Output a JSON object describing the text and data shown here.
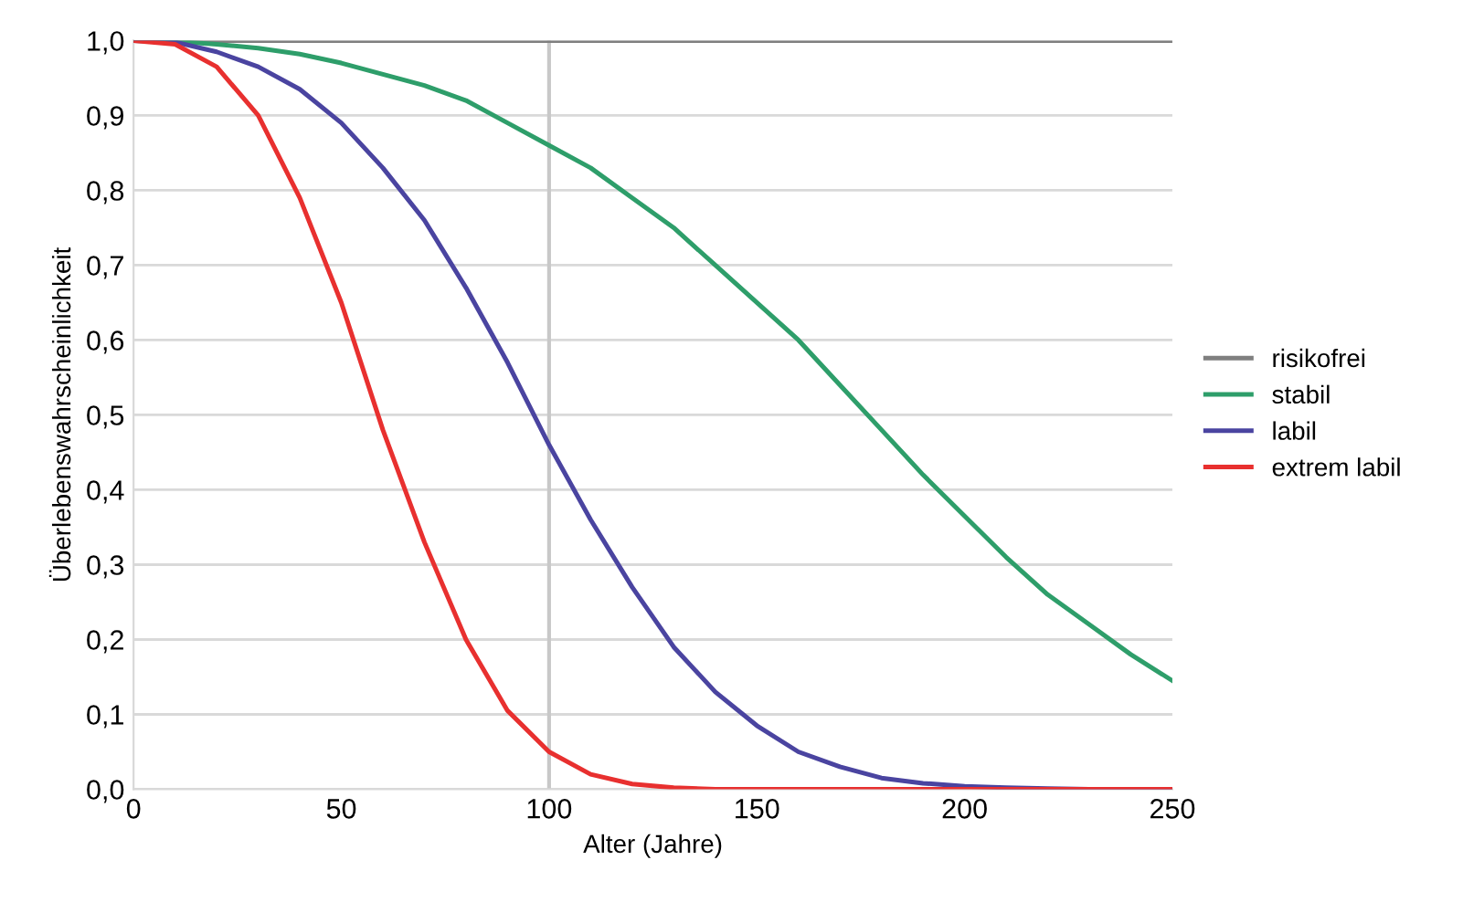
{
  "chart_data": {
    "type": "line",
    "xlabel": "Alter (Jahre)",
    "ylabel": "Überlebenswahrscheinlichkeit",
    "x": [
      0,
      10,
      20,
      30,
      40,
      50,
      60,
      70,
      80,
      90,
      100,
      110,
      120,
      130,
      140,
      150,
      160,
      170,
      180,
      190,
      200,
      210,
      220,
      230,
      240,
      250
    ],
    "series": [
      {
        "name": "risikofrei",
        "color": "#7f7f7f",
        "values": [
          1,
          1,
          1,
          1,
          1,
          1,
          1,
          1,
          1,
          1,
          1,
          1,
          1,
          1,
          1,
          1,
          1,
          1,
          1,
          1,
          1,
          1,
          1,
          1,
          1,
          1
        ]
      },
      {
        "name": "stabil",
        "color": "#2e9e6a",
        "values": [
          1,
          0.999,
          0.995,
          0.99,
          0.982,
          0.97,
          0.955,
          0.94,
          0.92,
          0.89,
          0.86,
          0.83,
          0.79,
          0.75,
          0.7,
          0.65,
          0.6,
          0.54,
          0.48,
          0.42,
          0.365,
          0.31,
          0.26,
          0.22,
          0.18,
          0.145
        ]
      },
      {
        "name": "labil",
        "color": "#4a44a0",
        "values": [
          1,
          0.998,
          0.985,
          0.965,
          0.935,
          0.89,
          0.83,
          0.76,
          0.67,
          0.57,
          0.46,
          0.36,
          0.27,
          0.19,
          0.13,
          0.085,
          0.05,
          0.03,
          0.015,
          0.008,
          0.004,
          0.002,
          0.001,
          0,
          0,
          0
        ]
      },
      {
        "name": "extrem labil",
        "color": "#e8302f",
        "values": [
          1,
          0.995,
          0.965,
          0.9,
          0.79,
          0.65,
          0.48,
          0.33,
          0.2,
          0.105,
          0.05,
          0.02,
          0.007,
          0.002,
          0,
          0,
          0,
          0,
          0,
          0,
          0,
          0,
          0,
          0,
          0,
          0
        ]
      }
    ],
    "xlim": [
      0,
      250
    ],
    "xticks": [
      0,
      50,
      100,
      150,
      200,
      250
    ],
    "ylim": [
      0,
      1
    ],
    "yticks": [
      {
        "value": 0,
        "label": "0,0"
      },
      {
        "value": 0.1,
        "label": "0,1"
      },
      {
        "value": 0.2,
        "label": "0,2"
      },
      {
        "value": 0.3,
        "label": "0,3"
      },
      {
        "value": 0.4,
        "label": "0,4"
      },
      {
        "value": 0.5,
        "label": "0,5"
      },
      {
        "value": 0.6,
        "label": "0,6"
      },
      {
        "value": 0.7,
        "label": "0,7"
      },
      {
        "value": 0.8,
        "label": "0,8"
      },
      {
        "value": 0.9,
        "label": "0,9"
      },
      {
        "value": 1,
        "label": "1,0"
      }
    ],
    "ref_lines": [
      {
        "axis": "x",
        "value": 100,
        "color": "#c8c8c8"
      }
    ],
    "grid": "y",
    "legend": "right",
    "marker": "none",
    "line_style": "solid"
  }
}
